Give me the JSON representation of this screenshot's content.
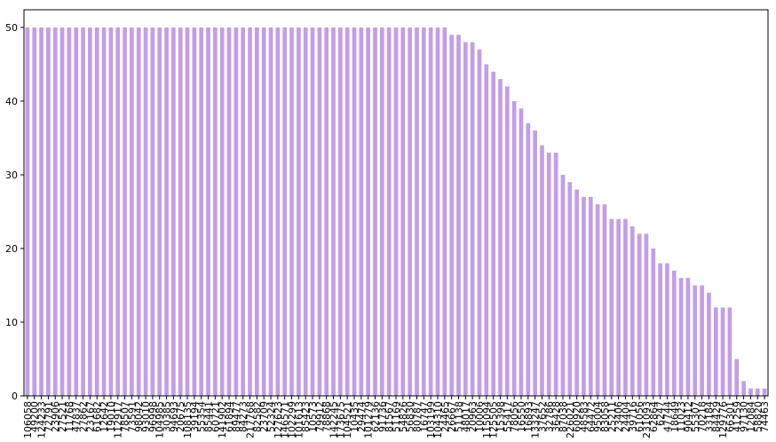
{
  "chart_data": {
    "type": "bar",
    "categories": [
      "106058",
      "49200",
      "124233",
      "72791",
      "23906",
      "27521",
      "11768",
      "47837",
      "27862",
      "23167",
      "61682",
      "12642",
      "19010",
      "112917",
      "78507",
      "73591",
      "98042",
      "93010",
      "96998",
      "104985",
      "30385",
      "94693",
      "20675",
      "108135",
      "39194",
      "55354",
      "85441",
      "60721",
      "141902",
      "61894",
      "89477",
      "84273",
      "217768",
      "82582",
      "23709",
      "52324",
      "127623",
      "146571",
      "102299",
      "101613",
      "85423",
      "10573",
      "79912",
      "78868",
      "142245",
      "173675",
      "104521",
      "10435",
      "29474",
      "101279",
      "62136",
      "91736",
      "81567",
      "51169",
      "54826",
      "56830",
      "80787",
      "16747",
      "103199",
      "104310",
      "24465",
      "26667",
      "51138",
      "48017",
      "20963",
      "10006",
      "115094",
      "125505",
      "15398",
      "55417",
      "78056",
      "16550",
      "16893",
      "133247",
      "37652",
      "32786",
      "36428",
      "87038",
      "226021",
      "60920",
      "48583",
      "64472",
      "95004",
      "83058",
      "25211",
      "23406",
      "24404",
      "39716",
      "61056",
      "231093",
      "62864",
      "6247",
      "47744",
      "18649",
      "11023",
      "90412",
      "55307",
      "70218",
      "33184",
      "84429",
      "129776",
      "66301",
      "41259",
      "97130",
      "12084",
      "58820",
      "74463"
    ],
    "values": [
      50,
      50,
      50,
      50,
      50,
      50,
      50,
      50,
      50,
      50,
      50,
      50,
      50,
      50,
      50,
      50,
      50,
      50,
      50,
      50,
      50,
      50,
      50,
      50,
      50,
      50,
      50,
      50,
      50,
      50,
      50,
      50,
      50,
      50,
      50,
      50,
      50,
      50,
      50,
      50,
      50,
      50,
      50,
      50,
      50,
      50,
      50,
      50,
      50,
      50,
      50,
      50,
      50,
      50,
      50,
      50,
      50,
      50,
      50,
      50,
      50,
      49,
      49,
      48,
      48,
      47,
      45,
      44,
      43,
      42,
      40,
      39,
      37,
      36,
      34,
      33,
      33,
      30,
      29,
      28,
      27,
      27,
      26,
      26,
      24,
      24,
      24,
      23,
      22,
      22,
      20,
      18,
      18,
      17,
      16,
      16,
      15,
      15,
      14,
      12,
      12,
      12,
      5,
      2,
      1,
      1,
      1
    ],
    "color": "#c39ee8",
    "ylim": [
      0,
      52.4
    ],
    "yticks": [
      0,
      10,
      20,
      30,
      40,
      50
    ],
    "grid": false
  }
}
